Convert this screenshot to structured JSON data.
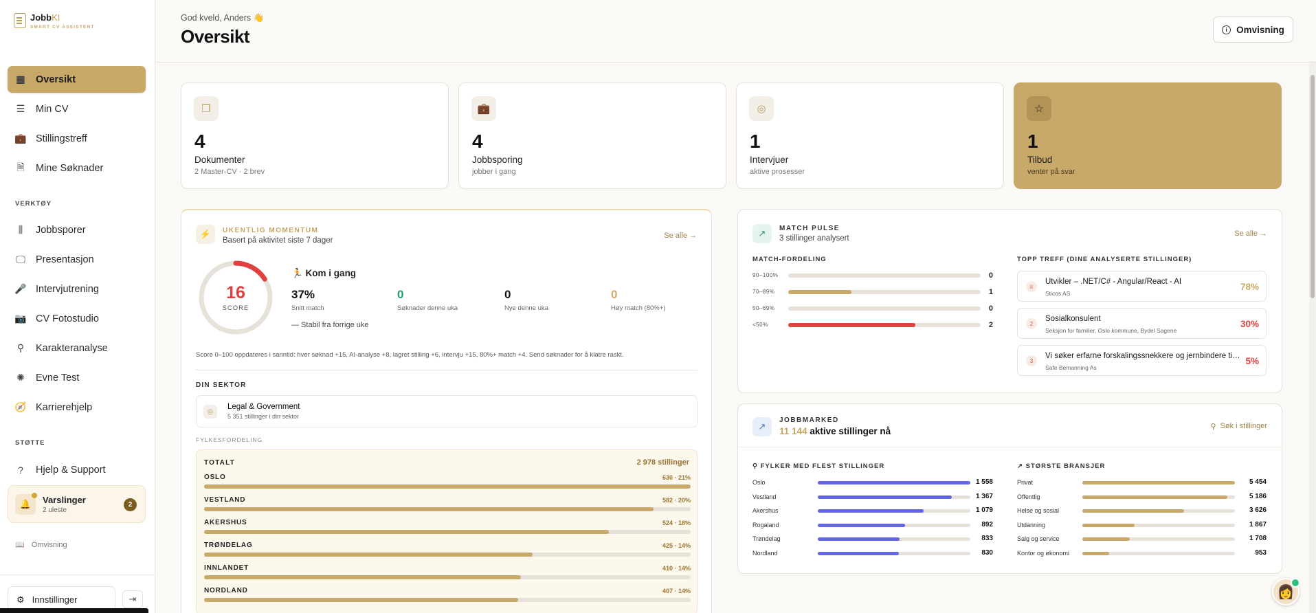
{
  "brand": {
    "name": "Jobb",
    "name_accent": "KI",
    "tagline": "SMART CV ASSISTENT"
  },
  "nav": {
    "main": [
      {
        "label": "Oversikt",
        "icon": "grid-icon",
        "active": true
      },
      {
        "label": "Min CV",
        "icon": "cv-icon"
      },
      {
        "label": "Stillingstreff",
        "icon": "briefcase-icon"
      },
      {
        "label": "Mine Søknader",
        "icon": "document-icon"
      }
    ],
    "tools_heading": "VERKTØY",
    "tools": [
      {
        "label": "Jobbsporer",
        "icon": "kanban-icon"
      },
      {
        "label": "Presentasjon",
        "icon": "monitor-icon"
      },
      {
        "label": "Intervjutrening",
        "icon": "microphone-icon"
      },
      {
        "label": "CV Fotostudio",
        "icon": "camera-icon"
      },
      {
        "label": "Karakteranalyse",
        "icon": "search-icon"
      },
      {
        "label": "Evne Test",
        "icon": "brain-icon"
      },
      {
        "label": "Karrierehjelp",
        "icon": "compass-icon"
      }
    ],
    "support_heading": "STØTTE",
    "support": [
      {
        "label": "Hjelp & Support",
        "icon": "help-icon"
      }
    ]
  },
  "notifications": {
    "title": "Varslinger",
    "subtitle": "2 uleste",
    "count": "2"
  },
  "sidebar_tour": "Omvisning",
  "settings_label": "Innstillinger",
  "header": {
    "greeting": "God kveld, Anders 👋",
    "title": "Oversikt",
    "tour_button": "Omvisning"
  },
  "stats": [
    {
      "value": "4",
      "label": "Dokumenter",
      "sub": "2 Master-CV · 2 brev",
      "icon": "documents-icon"
    },
    {
      "value": "4",
      "label": "Jobbsporing",
      "sub": "jobber i gang",
      "icon": "briefcase-icon"
    },
    {
      "value": "1",
      "label": "Intervjuer",
      "sub": "aktive prosesser",
      "icon": "target-icon"
    },
    {
      "value": "1",
      "label": "Tilbud",
      "sub": "venter på svar",
      "icon": "star-icon"
    }
  ],
  "momentum": {
    "title": "UKENTLIG MOMENTUM",
    "subtitle": "Basert på aktivitet siste 7 dager",
    "see_all": "Se alle →",
    "score": 16,
    "score_label": "SCORE",
    "status": "🏃 Kom i gang",
    "stats": [
      {
        "value": "37%",
        "label": "Snitt match",
        "color": "#111111"
      },
      {
        "value": "0",
        "label": "Søknader denne uka",
        "color": "#1e9e6a"
      },
      {
        "value": "0",
        "label": "Nye denne uka",
        "color": "#111111"
      },
      {
        "value": "0",
        "label": "Høy match (80%+)",
        "color": "#d4a968"
      }
    ],
    "trend": "—   Stabil fra forrige uke",
    "note": "Score 0–100 oppdateres i sanntid: hver søknad +15, AI-analyse +8, lagret stilling +6, intervju +15, 80%+ match +4. Send søknader for å klatre raskt.",
    "sector_heading": "DIN SEKTOR",
    "sector_name": "Legal & Government",
    "sector_sub": "5 351 stillinger i din sektor",
    "county_heading": "FYLKESFORDELING",
    "total_label": "TOTALT",
    "total_value": "2 978 stillinger",
    "counties": [
      {
        "name": "OSLO",
        "value": "630 · 21%",
        "fraction": 1.0
      },
      {
        "name": "VESTLAND",
        "value": "582 · 20%",
        "fraction": 0.924
      },
      {
        "name": "AKERSHUS",
        "value": "524 · 18%",
        "fraction": 0.832
      },
      {
        "name": "TRØNDELAG",
        "value": "425 · 14%",
        "fraction": 0.675
      },
      {
        "name": "INNLANDET",
        "value": "410 · 14%",
        "fraction": 0.651
      },
      {
        "name": "NORDLAND",
        "value": "407 · 14%",
        "fraction": 0.646
      }
    ]
  },
  "pulse": {
    "title": "MATCH PULSE",
    "subtitle": "3 stillinger analysert",
    "see_all": "Se alle →",
    "dist_heading": "MATCH-FORDELING",
    "dist": [
      {
        "label": "90–100%",
        "count": "0",
        "fraction": 0,
        "color": "#c8a969"
      },
      {
        "label": "70–89%",
        "count": "1",
        "fraction": 0.33,
        "color": "#c8a969"
      },
      {
        "label": "50–69%",
        "count": "0",
        "fraction": 0,
        "color": "#c8a969"
      },
      {
        "label": "<50%",
        "count": "2",
        "fraction": 0.66,
        "color": "#e0403e"
      }
    ],
    "top_heading": "TOPP TREFF (DINE ANALYSERTE STILLINGER)",
    "top": [
      {
        "rank": "♕",
        "title": "Utvikler – .NET/C# - Angular/React - AI",
        "company": "Sticos AS",
        "pct": "78%",
        "color": "#c8a969"
      },
      {
        "rank": "2",
        "title": "Sosialkonsulent",
        "company": "Seksjon for familier, Oslo kommune, Bydel Sagene",
        "pct": "30%",
        "color": "#e0403e"
      },
      {
        "rank": "3",
        "title": "Vi søker erfarne forskalingssnekkere og jernbindere til s...",
        "company": "Safe Bemanning As",
        "pct": "5%",
        "color": "#e0403e"
      }
    ]
  },
  "jobbmarked": {
    "title": "JOBBMARKED",
    "count": "11 144",
    "count_suffix": "aktive stillinger nå",
    "search": "Søk i stillinger",
    "regions_heading": "FYLKER MED FLEST STILLINGER",
    "regions": [
      {
        "name": "Oslo",
        "value": "1 558",
        "fraction": 1.0
      },
      {
        "name": "Vestland",
        "value": "1 367",
        "fraction": 0.877
      },
      {
        "name": "Akershus",
        "value": "1 079",
        "fraction": 0.693
      },
      {
        "name": "Rogaland",
        "value": "892",
        "fraction": 0.573
      },
      {
        "name": "Trøndelag",
        "value": "833",
        "fraction": 0.535
      },
      {
        "name": "Nordland",
        "value": "830",
        "fraction": 0.533
      }
    ],
    "industries_heading": "STØRSTE BRANSJER",
    "industries": [
      {
        "name": "Privat",
        "value": "5 454",
        "fraction": 1.0
      },
      {
        "name": "Offentlig",
        "value": "5 186",
        "fraction": 0.951
      },
      {
        "name": "Helse og sosial",
        "value": "3 626",
        "fraction": 0.665
      },
      {
        "name": "Utdanning",
        "value": "1 867",
        "fraction": 0.342
      },
      {
        "name": "Salg og service",
        "value": "1 708",
        "fraction": 0.313
      },
      {
        "name": "Kontor og økonomi",
        "value": "953",
        "fraction": 0.175
      }
    ]
  }
}
